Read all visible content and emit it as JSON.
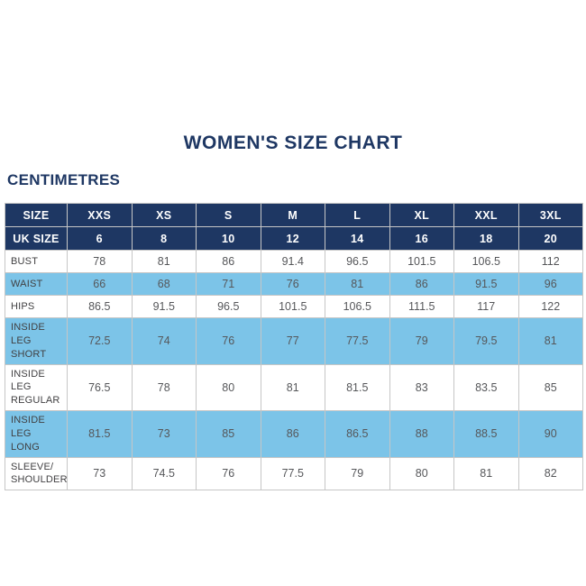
{
  "page": {
    "title": "WOMEN'S SIZE CHART",
    "units_label": "CENTIMETRES"
  },
  "colors": {
    "navy": "#1e3763",
    "row_blue": "#7cc4e8",
    "row_white": "#ffffff",
    "border": "#c6c6c6",
    "header_text": "#ffffff",
    "label_text": "#414042",
    "value_text": "#56575a"
  },
  "table": {
    "header_rows": [
      {
        "label": "SIZE",
        "values": [
          "XXS",
          "XS",
          "S",
          "M",
          "L",
          "XL",
          "XXL",
          "3XL"
        ]
      },
      {
        "label": "UK SIZE",
        "values": [
          "6",
          "8",
          "10",
          "12",
          "14",
          "16",
          "18",
          "20"
        ]
      }
    ],
    "rows": [
      {
        "label": "BUST",
        "display": "BUST",
        "shaded": false,
        "values": [
          "78",
          "81",
          "86",
          "91.4",
          "96.5",
          "101.5",
          "106.5",
          "112"
        ]
      },
      {
        "label": "WAIST",
        "display": "WAIST",
        "shaded": true,
        "values": [
          "66",
          "68",
          "71",
          "76",
          "81",
          "86",
          "91.5",
          "96"
        ]
      },
      {
        "label": "HIPS",
        "display": "HIPS",
        "shaded": false,
        "values": [
          "86.5",
          "91.5",
          "96.5",
          "101.5",
          "106.5",
          "111.5",
          "117",
          "122"
        ]
      },
      {
        "label": "INSIDE LEG SHORT",
        "display": "INSIDE LEG\nSHORT",
        "shaded": true,
        "values": [
          "72.5",
          "74",
          "76",
          "77",
          "77.5",
          "79",
          "79.5",
          "81"
        ]
      },
      {
        "label": "INSIDE LEG REGULAR",
        "display": "INSIDE LEG\nREGULAR",
        "shaded": false,
        "values": [
          "76.5",
          "78",
          "80",
          "81",
          "81.5",
          "83",
          "83.5",
          "85"
        ]
      },
      {
        "label": "INSIDE LEG LONG",
        "display": "INSIDE LEG\nLONG",
        "shaded": true,
        "values": [
          "81.5",
          "73",
          "85",
          "86",
          "86.5",
          "88",
          "88.5",
          "90"
        ]
      },
      {
        "label": "SLEEVE/SHOULDER",
        "display": "SLEEVE/\nSHOULDER",
        "shaded": false,
        "values": [
          "73",
          "74.5",
          "76",
          "77.5",
          "79",
          "80",
          "81",
          "82"
        ]
      }
    ]
  },
  "chart_data": {
    "type": "table",
    "title": "WOMEN'S SIZE CHART",
    "units": "CENTIMETRES",
    "columns": [
      "SIZE",
      "XXS",
      "XS",
      "S",
      "M",
      "L",
      "XL",
      "XXL",
      "3XL"
    ],
    "rows": [
      {
        "measurement": "UK SIZE",
        "values": [
          6,
          8,
          10,
          12,
          14,
          16,
          18,
          20
        ]
      },
      {
        "measurement": "BUST",
        "values": [
          78,
          81,
          86,
          91.4,
          96.5,
          101.5,
          106.5,
          112
        ]
      },
      {
        "measurement": "WAIST",
        "values": [
          66,
          68,
          71,
          76,
          81,
          86,
          91.5,
          96
        ]
      },
      {
        "measurement": "HIPS",
        "values": [
          86.5,
          91.5,
          96.5,
          101.5,
          106.5,
          111.5,
          117,
          122
        ]
      },
      {
        "measurement": "INSIDE LEG SHORT",
        "values": [
          72.5,
          74,
          76,
          77,
          77.5,
          79,
          79.5,
          81
        ]
      },
      {
        "measurement": "INSIDE LEG REGULAR",
        "values": [
          76.5,
          78,
          80,
          81,
          81.5,
          83,
          83.5,
          85
        ]
      },
      {
        "measurement": "INSIDE LEG LONG",
        "values": [
          81.5,
          73,
          85,
          86,
          86.5,
          88,
          88.5,
          90
        ]
      },
      {
        "measurement": "SLEEVE/SHOULDER",
        "values": [
          73,
          74.5,
          76,
          77.5,
          79,
          80,
          81,
          82
        ]
      }
    ]
  }
}
